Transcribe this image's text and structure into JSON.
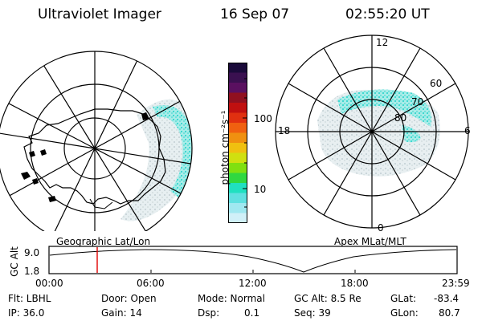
{
  "header": {
    "instrument": "Ultraviolet Imager",
    "date": "16 Sep 07",
    "time": "02:55:20 UT"
  },
  "colorbar": {
    "unit_label": "photon cm⁻²s⁻¹",
    "ticks": [
      "100",
      "10"
    ],
    "colors": [
      "#1a0a3a",
      "#3a1050",
      "#5a1060",
      "#901020",
      "#c01010",
      "#e03010",
      "#f06010",
      "#f09010",
      "#f0c010",
      "#d0e010",
      "#80e010",
      "#30d840",
      "#20e0c0",
      "#60e0e0",
      "#a0e8f0",
      "#d0f0f8"
    ]
  },
  "left_map": {
    "label": "Geographic Lat/Lon",
    "land_color": "#000000",
    "aurora_color": "#40d8d0"
  },
  "right_map": {
    "label": "Apex MLat/MLT",
    "mlt_labels": {
      "top": "12",
      "bottom": "0",
      "left": "18",
      "right": "6"
    },
    "lat_labels": [
      "60",
      "70",
      "80"
    ],
    "aurora_color": "#40d8d0"
  },
  "timeline": {
    "axis_label": "GC Alt",
    "ytick_top": "9.0",
    "ytick_bottom": "1.8",
    "xticks": [
      "00:00",
      "06:00",
      "12:00",
      "18:00",
      "23:59"
    ],
    "marker_color": "#e00000"
  },
  "stats": {
    "flt": "Flt: LBHL",
    "ip": "IP: 36.0",
    "door": "Door: Open",
    "gain": "Gain: 14",
    "mode": "Mode: Normal",
    "dsp_label": "Dsp:",
    "dsp_value": "0.1",
    "gcalt": "GC Alt: 8.5 Re",
    "seq": "Seq: 39",
    "glat_label": "GLat:",
    "glat_value": "-83.4",
    "glon_label": "GLon:",
    "glon_value": "80.7"
  }
}
